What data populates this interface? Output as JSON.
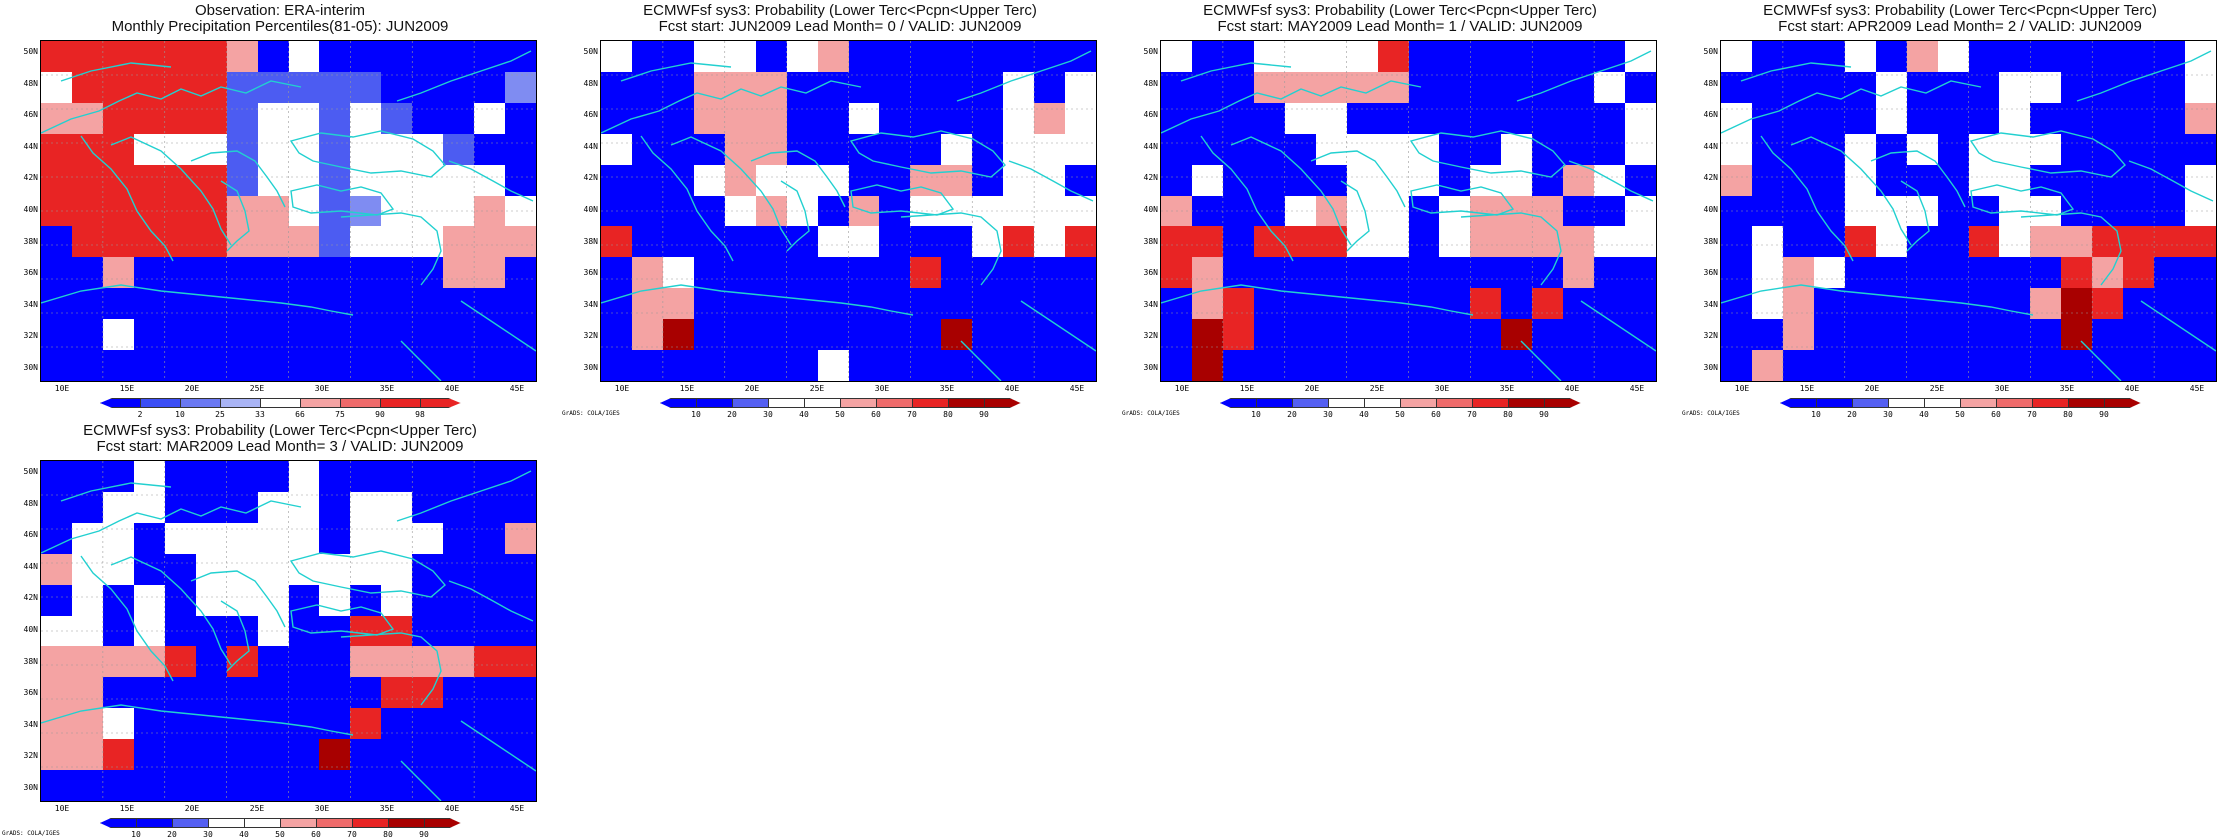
{
  "palette": {
    "deep_blue": "#0000ff",
    "mid_blue": "#4c5cf2",
    "light_blue": "#7f8cf2",
    "pale_blue": "#a9b4f5",
    "white": "#ffffff",
    "pale_red": "#f4a3a3",
    "light_red": "#ef6b6b",
    "red": "#e82424",
    "deep_red": "#a80000",
    "coast": "#22d0d0",
    "grid": "#9a9a9a"
  },
  "lat_labels": [
    "50N",
    "48N",
    "46N",
    "44N",
    "42N",
    "40N",
    "38N",
    "36N",
    "34N",
    "32N",
    "30N"
  ],
  "lon_labels": [
    "10E",
    "15E",
    "20E",
    "25E",
    "30E",
    "35E",
    "40E",
    "45E"
  ],
  "grads_credit": "GrADS: COLA/IGES",
  "panels": [
    {
      "title": "Observation: ERA-interim",
      "subtitle": "Monthly Precipitation Percentiles(81-05): JUN2009",
      "colorbar_ticks": [
        "2",
        "10",
        "25",
        "33",
        "66",
        "75",
        "90",
        "98"
      ],
      "colorbar_colors": [
        "#0000ff",
        "#3b4ef5",
        "#6a78f2",
        "#a9b4f5",
        "#ffffff",
        "#f4a3a3",
        "#ef6b6b",
        "#e82424",
        "#e82424"
      ],
      "show_credit": false,
      "grid": [
        "rrrrrrpbwbbbbbbb",
        "wrrrrrmmmmmbbbbl",
        "pprrrrmwwmwmbbwb",
        "rrrwwwmwwmwwwmbb",
        "rrrrrrmwwmwwwwwb",
        "rrrrrrppwmlwwwpw",
        "brrrrrpppmwwwppp",
        "bbpbbbbbbbbbbppb",
        "bbbbbbbbbbbbbbbb",
        "bbwbbbbbbbbbbbbb",
        "bbbbbbbbbbbbbbbb"
      ]
    },
    {
      "title": "ECMWFsf sys3: Probability (Lower Terc<Pcpn<Upper Terc)",
      "subtitle": "Fcst start: JUN2009   Lead Month= 0 / VALID: JUN2009",
      "colorbar_ticks": [
        "10",
        "20",
        "30",
        "40",
        "50",
        "60",
        "70",
        "80",
        "90"
      ],
      "colorbar_colors": [
        "#0000ff",
        "#0000ff",
        "#5560f2",
        "#ffffff",
        "#ffffff",
        "#f4a3a3",
        "#ef6b6b",
        "#e82424",
        "#a80000",
        "#a80000"
      ],
      "show_credit": true,
      "grid": [
        "wbbwwbwpbbbbbbbb",
        "bbbpppbbbbbbbwbw",
        "bbbpppbbwbbbbwpw",
        "wbbbppbbbbbwbwww",
        "bbbwpwwwbbppbwwb",
        "bbbbwpwbpbwwwwww",
        "rbbbbbbwwbbbwrwr",
        "bpwbbbbbbbrbbbbb",
        "bppbbbbbbbbbbbbb",
        "bpdbbbbbbbbdbbbb",
        "bbbbbbbwbbbbbbbb"
      ]
    },
    {
      "title": "ECMWFsf sys3: Probability (Lower Terc<Pcpn<Upper Terc)",
      "subtitle": "Fcst start: MAY2009   Lead Month= 1 / VALID: JUN2009",
      "colorbar_ticks": [
        "10",
        "20",
        "30",
        "40",
        "50",
        "60",
        "70",
        "80",
        "90"
      ],
      "colorbar_colors": [
        "#0000ff",
        "#0000ff",
        "#5560f2",
        "#ffffff",
        "#ffffff",
        "#f4a3a3",
        "#ef6b6b",
        "#e82424",
        "#a80000",
        "#a80000"
      ],
      "show_credit": true,
      "grid": [
        "wbbwwwwrbbbbbbbw",
        "bbbpppppbbbbbbwb",
        "bbbbwwbbbbbbbbbw",
        "bbbbbwwwwbbwbbbw",
        "bwbbbbwwwbwwbpwb",
        "pbbbwpwwbwpppbbw",
        "rrbrrrwwbwppppww",
        "rpbbbbbbbbbbbpbb",
        "bprbbbbbbbrbrbbb",
        "bdrbbbbbbbbdbbbb",
        "bdbbbbbbbbbbbbbb"
      ]
    },
    {
      "title": "ECMWFsf sys3: Probability (Lower Terc<Pcpn<Upper Terc)",
      "subtitle": "Fcst start: APR2009   Lead Month= 2 / VALID: JUN2009",
      "colorbar_ticks": [
        "10",
        "20",
        "30",
        "40",
        "50",
        "60",
        "70",
        "80",
        "90"
      ],
      "colorbar_colors": [
        "#0000ff",
        "#0000ff",
        "#5560f2",
        "#ffffff",
        "#ffffff",
        "#f4a3a3",
        "#ef6b6b",
        "#e82424",
        "#a80000",
        "#a80000"
      ],
      "show_credit": true,
      "grid": [
        "wbbbwbpwbbbbbbbw",
        "bbbbbwbbbwwbbbbw",
        "wbbbbwbbbwbbbbbp",
        "wbbbwbwbwwwbbbbb",
        "pbbbwbbbwwbbbbbw",
        "bbbbwwwbbwwbbbbw",
        "bwbbrwbbrwpprrrr",
        "bwpwbbbbbbbrprbb",
        "bwpbbbbbbbpdrbbb",
        "bbpbbbbbbbbdbbbb",
        "bpbbbbbbbbbbbbbb"
      ]
    },
    {
      "title": "ECMWFsf sys3: Probability (Lower Terc<Pcpn<Upper Terc)",
      "subtitle": "Fcst start: MAR2009   Lead Month= 3 / VALID: JUN2009",
      "colorbar_ticks": [
        "10",
        "20",
        "30",
        "40",
        "50",
        "60",
        "70",
        "80",
        "90"
      ],
      "colorbar_colors": [
        "#0000ff",
        "#0000ff",
        "#5560f2",
        "#ffffff",
        "#ffffff",
        "#f4a3a3",
        "#ef6b6b",
        "#e82424",
        "#a80000",
        "#a80000"
      ],
      "show_credit": true,
      "grid": [
        "bbbwbbbbwbbbbbbb",
        "bbwwbbbwwbwwbbbb",
        "bwwbwwwwwbwwwbbp",
        "pwwbbwwwwwwwbbbb",
        "bwbwbwwwbwbwbbbb",
        "wwbwbbbwbbrrbbbb",
        "pppprbrbbbpppprr",
        "ppbbbbbbbbbrrbbb",
        "ppwbbbbbbbrbbbbb",
        "pprbbbbbbdbbbbbb",
        "bbbbbbbbbbbbbbbb"
      ]
    }
  ]
}
